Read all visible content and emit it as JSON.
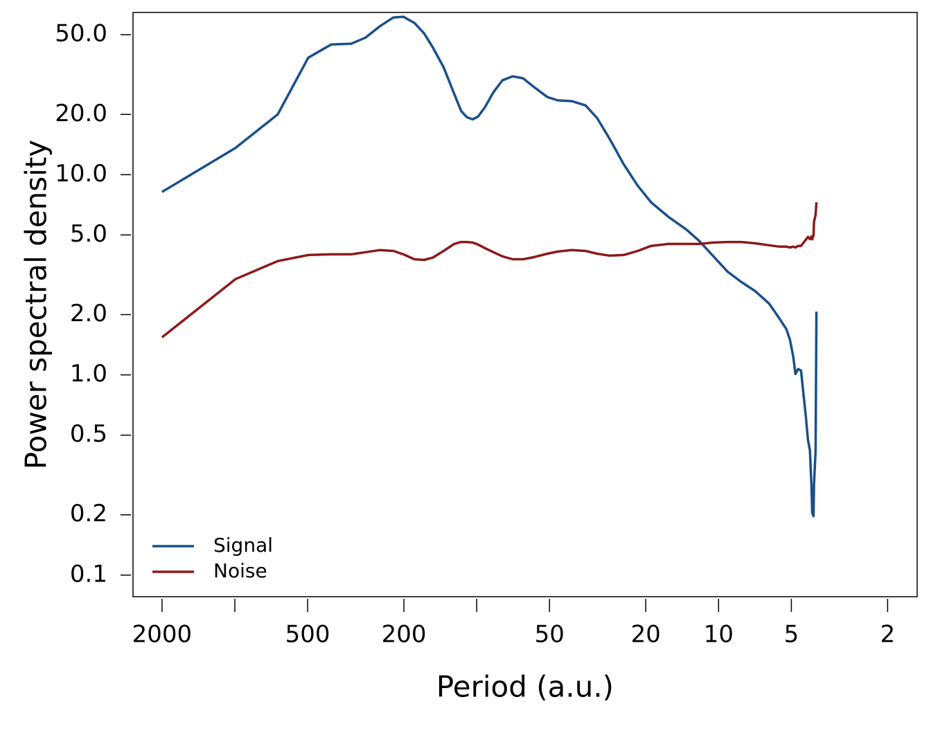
{
  "chart_data": {
    "type": "line",
    "x_label": "Period (a.u.)",
    "y_label": "Power spectral density",
    "xlog": true,
    "ylog": true,
    "legend": "lower left",
    "xlim": [
      2637,
      1.51
    ],
    "ylim": [
      0.078,
      64.6
    ],
    "xticks": [
      2000,
      500,
      200,
      50,
      20,
      10,
      5,
      2
    ],
    "xminorticks": [
      1000,
      100
    ],
    "yticks": [
      {
        "value": 50,
        "label": "50.0"
      },
      {
        "value": 20,
        "label": "20.0"
      },
      {
        "value": 10,
        "label": "10.0"
      },
      {
        "value": 5,
        "label": "5.0"
      },
      {
        "value": 2,
        "label": "2.0"
      },
      {
        "value": 1,
        "label": "1.0"
      },
      0.5,
      0.2,
      0.1
    ],
    "x": [
      2000,
      994,
      665,
      497,
      400,
      330,
      288,
      252,
      221,
      201,
      181,
      165,
      152,
      137,
      124,
      116,
      110,
      104,
      98.8,
      92.5,
      85.3,
      78.3,
      71.0,
      64.3,
      58.2,
      51.0,
      46.2,
      40.5,
      35.5,
      31.8,
      28.2,
      24.7,
      21.6,
      19.0,
      16.1,
      13.6,
      12.0,
      10.5,
      9.18,
      8.05,
      7.05,
      6.18,
      5.6,
      5.24,
      5.07,
      4.91,
      4.81,
      4.69,
      4.56,
      4.45,
      4.36,
      4.27,
      4.19,
      4.13,
      4.1,
      4.05,
      4.03,
      3.97,
      3.94
    ],
    "series": [
      {
        "name": "Signal",
        "color": "#1a4f8b",
        "values": [
          8.2,
          13.6,
          20.0,
          38.4,
          44.7,
          45.1,
          48.4,
          55.0,
          61.0,
          61.5,
          57.3,
          50.8,
          43.3,
          34.4,
          25.4,
          20.8,
          19.4,
          18.9,
          19.5,
          21.7,
          25.8,
          29.6,
          31.0,
          30.3,
          27.5,
          24.4,
          23.5,
          23.3,
          22.2,
          19.2,
          15.1,
          11.3,
          8.81,
          7.27,
          6.15,
          5.33,
          4.66,
          3.91,
          3.28,
          2.91,
          2.62,
          2.27,
          1.91,
          1.69,
          1.5,
          1.23,
          1.01,
          1.07,
          1.05,
          0.79,
          0.625,
          0.473,
          0.42,
          0.282,
          0.205,
          0.197,
          0.282,
          0.42,
          2.07
        ]
      },
      {
        "name": "Noise",
        "color": "#8b1a1a",
        "values": [
          1.54,
          3.01,
          3.7,
          3.97,
          4.0,
          4.0,
          4.1,
          4.2,
          4.16,
          4.0,
          3.78,
          3.75,
          3.85,
          4.16,
          4.51,
          4.61,
          4.61,
          4.58,
          4.48,
          4.3,
          4.1,
          3.91,
          3.78,
          3.78,
          3.87,
          4.03,
          4.13,
          4.2,
          4.16,
          4.03,
          3.94,
          3.97,
          4.16,
          4.41,
          4.51,
          4.51,
          4.51,
          4.58,
          4.61,
          4.61,
          4.54,
          4.44,
          4.37,
          4.37,
          4.33,
          4.37,
          4.33,
          4.41,
          4.41,
          4.58,
          4.73,
          4.89,
          4.76,
          4.92,
          4.76,
          4.97,
          5.82,
          6.3,
          7.28
        ]
      }
    ]
  }
}
